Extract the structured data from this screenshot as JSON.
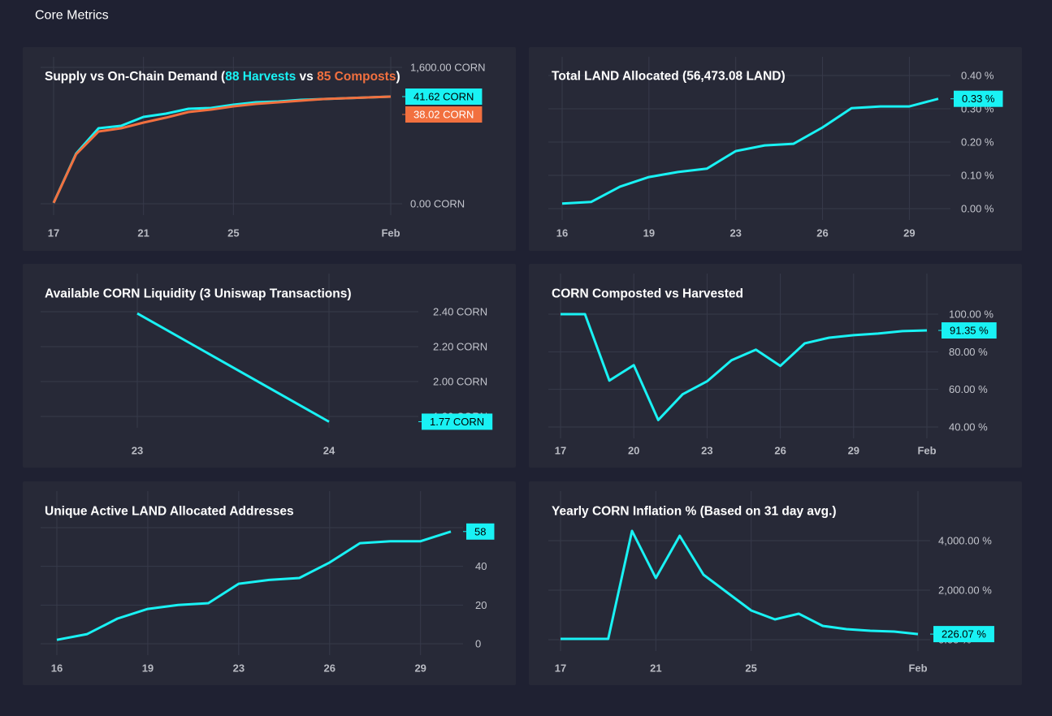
{
  "header": {
    "title": "Core Metrics"
  },
  "chart_data": [
    {
      "type": "line",
      "title": [
        "Supply vs On-Chain Demand (",
        " vs ",
        ")"
      ],
      "categories": [
        "17",
        null,
        null,
        null,
        "21",
        null,
        null,
        null,
        "25",
        null,
        null,
        null,
        null,
        null,
        null,
        "Feb"
      ],
      "series": [
        {
          "name": "88 Harvests",
          "color": "#19f2f4",
          "label_color": "#000000",
          "badge": "41.62 CORN",
          "values": [
            10,
            590,
            886,
            914,
            1019,
            1057,
            1114,
            1124,
            1162,
            1190,
            1200,
            1219,
            1229,
            1238,
            1248,
            1257
          ]
        },
        {
          "name": "85 Composts",
          "color": "#f2703f",
          "label_color": "#ffffff",
          "badge": "38.02 CORN",
          "values": [
            10,
            581,
            848,
            886,
            952,
            1010,
            1076,
            1105,
            1143,
            1171,
            1190,
            1210,
            1229,
            1238,
            1248,
            1257
          ]
        }
      ],
      "ylim": [
        0,
        1600
      ],
      "yticks": [
        {
          "value": 0,
          "label": "0.00 CORN"
        },
        {
          "value": 1600,
          "label": "1,600.00 CORN"
        }
      ],
      "grid": true
    },
    {
      "type": "line",
      "title": "Total LAND Allocated (56,473.08 LAND)",
      "categories": [
        "16",
        null,
        null,
        "19",
        null,
        null,
        "23",
        null,
        null,
        "26",
        null,
        null,
        "29",
        null
      ],
      "values": [
        0.015,
        0.02,
        0.066,
        0.095,
        0.11,
        0.12,
        0.173,
        0.19,
        0.195,
        0.244,
        0.302,
        0.307,
        0.307,
        0.33
      ],
      "value_labels": [
        null,
        null,
        null,
        null,
        null,
        null,
        null,
        null,
        null,
        null,
        null,
        null,
        null,
        "0.33 %"
      ],
      "color": "#19f2f4",
      "label_color": "#000000",
      "last_value_badge": true,
      "ylim": [
        0,
        0.4
      ],
      "yticks": [
        {
          "value": 0,
          "label": "0.00 %"
        },
        {
          "value": 0.1,
          "label": "0.10 %"
        },
        {
          "value": 0.2,
          "label": "0.20 %"
        },
        {
          "value": 0.3,
          "label": "0.30 %"
        },
        {
          "value": 0.4,
          "label": "0.40 %"
        }
      ],
      "grid": true
    },
    {
      "type": "line",
      "title": "Available CORN Liquidity (3 Uniswap Transactions)",
      "categories": [
        "23",
        "24"
      ],
      "values": [
        2.39,
        1.77
      ],
      "value_labels": [
        null,
        "1.77 CORN"
      ],
      "color": "#19f2f4",
      "label_color": "#000000",
      "last_value_badge": true,
      "ylim": [
        1.8,
        2.4
      ],
      "yticks": [
        {
          "value": 1.8,
          "label": "1.80 CORN"
        },
        {
          "value": 2.0,
          "label": "2.00 CORN"
        },
        {
          "value": 2.2,
          "label": "2.20 CORN"
        },
        {
          "value": 2.4,
          "label": "2.40 CORN"
        }
      ],
      "grid": true
    },
    {
      "type": "line",
      "title": "CORN Composted vs Harvested",
      "categories": [
        "17",
        null,
        null,
        "20",
        null,
        null,
        "23",
        null,
        null,
        "26",
        null,
        null,
        "29",
        null,
        null,
        "Feb"
      ],
      "values": [
        100,
        100,
        64.7,
        72.9,
        43.7,
        57.4,
        64.3,
        75.5,
        81.1,
        72.5,
        84.5,
        87.5,
        88.8,
        89.7,
        91.0,
        91.35
      ],
      "value_labels": [
        null,
        null,
        null,
        null,
        null,
        null,
        null,
        null,
        null,
        null,
        null,
        null,
        null,
        null,
        null,
        "91.35 %"
      ],
      "color": "#19f2f4",
      "label_color": "#000000",
      "last_value_badge": true,
      "ylim": [
        40,
        100
      ],
      "yticks": [
        {
          "value": 40,
          "label": "40.00 %"
        },
        {
          "value": 60,
          "label": "60.00 %"
        },
        {
          "value": 80,
          "label": "80.00 %"
        },
        {
          "value": 100,
          "label": "100.00 %"
        }
      ],
      "grid": true
    },
    {
      "type": "line",
      "title": "Unique Active LAND Allocated Addresses",
      "categories": [
        "16",
        null,
        null,
        "19",
        null,
        null,
        "23",
        null,
        null,
        "26",
        null,
        null,
        "29",
        null
      ],
      "values": [
        2,
        5,
        13,
        18,
        20,
        21,
        31,
        33,
        34,
        42,
        52,
        53,
        53,
        58
      ],
      "color": "#19f2f4",
      "label_color": "#000000",
      "last_value_badge": true,
      "ylim": [
        0,
        60
      ],
      "yticks": [
        0,
        20,
        40,
        60
      ],
      "grid": true
    },
    {
      "type": "line",
      "title": "Yearly CORN Inflation % (Based on 31 day avg.)",
      "categories": [
        "17",
        null,
        null,
        null,
        "21",
        null,
        null,
        null,
        "25",
        null,
        null,
        null,
        null,
        null,
        null,
        "Feb"
      ],
      "values": [
        33,
        33,
        33,
        4394,
        2492,
        4197,
        2623,
        1902,
        1180,
        820,
        1049,
        557,
        426,
        361,
        328,
        226.07
      ],
      "value_labels": [
        null,
        null,
        null,
        null,
        null,
        null,
        null,
        null,
        null,
        null,
        null,
        null,
        null,
        null,
        null,
        "226.07 %"
      ],
      "color": "#19f2f4",
      "label_color": "#000000",
      "last_value_badge": true,
      "ylim": [
        0,
        4000
      ],
      "yticks": [
        {
          "value": 0,
          "label": "0.00 %"
        },
        {
          "value": 2000,
          "label": "2,000.00 %"
        },
        {
          "value": 4000,
          "label": "4,000.00 %"
        }
      ],
      "grid": true
    }
  ]
}
